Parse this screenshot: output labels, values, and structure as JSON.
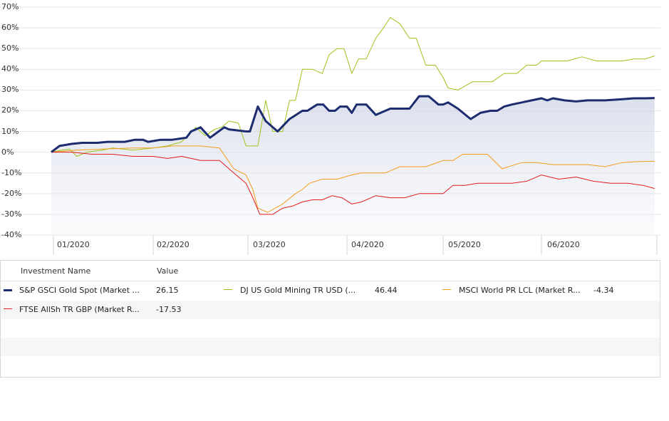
{
  "chart_data": {
    "type": "line",
    "ylim": [
      -40,
      70
    ],
    "y_ticks": [
      70,
      60,
      50,
      40,
      30,
      20,
      10,
      0,
      -10,
      -20,
      -30,
      -40
    ],
    "y_tick_labels": [
      "70%",
      "60%",
      "50%",
      "40%",
      "30%",
      "20%",
      "10%",
      "0%",
      "-10%",
      "-20%",
      "-30%",
      "-40%"
    ],
    "x_tick_labels": [
      "01/2020",
      "02/2020",
      "03/2020",
      "04/2020",
      "05/2020",
      "06/2020"
    ],
    "grid": true,
    "series": [
      {
        "name": "S&P GSCI Gold Spot (Market ...",
        "color": "#1c2c6e",
        "legend_value": "26.15",
        "x": [
          0.0,
          0.08,
          0.2,
          0.3,
          0.45,
          0.55,
          0.6,
          0.72,
          0.82,
          0.9,
          0.95,
          1.08,
          1.2,
          1.35,
          1.4,
          1.5,
          1.6,
          1.75,
          1.8,
          1.98,
          2.02,
          2.1,
          2.18,
          2.3,
          2.42,
          2.55,
          2.6,
          2.7,
          2.76,
          2.82,
          2.88,
          2.93,
          3.0,
          3.05,
          3.1,
          3.2,
          3.3,
          3.45,
          3.55,
          3.65,
          3.75,
          3.85,
          3.95,
          4.0,
          4.05,
          4.15,
          4.28,
          4.38,
          4.48,
          4.55,
          4.62,
          4.7,
          4.8,
          4.9,
          5.0,
          5.05,
          5.1,
          5.2,
          5.3,
          5.4,
          5.55,
          5.68,
          5.8,
          5.9,
          5.98
        ],
        "values": [
          0,
          3,
          4,
          4.5,
          4.5,
          5,
          5,
          5,
          6,
          6,
          5,
          6,
          6,
          7,
          10,
          12,
          7,
          12,
          11,
          10,
          10,
          22,
          15,
          10,
          16,
          20,
          20,
          23,
          23,
          20,
          20,
          22,
          22,
          19,
          23,
          23,
          18,
          21,
          21,
          21,
          27,
          27,
          23,
          23,
          24,
          21,
          16,
          19,
          20,
          20,
          22,
          23,
          24,
          25,
          26,
          25,
          26,
          25,
          24.5,
          25,
          25,
          25.5,
          26,
          26,
          26.15
        ]
      },
      {
        "name": "DJ US Gold Mining TR USD (...",
        "color": "#9dc21a",
        "legend_value": "46.44",
        "x": [
          0.0,
          0.1,
          0.18,
          0.25,
          0.35,
          0.5,
          0.6,
          0.8,
          1.0,
          1.15,
          1.3,
          1.45,
          1.55,
          1.65,
          1.72,
          1.8,
          1.9,
          1.98,
          2.1,
          2.18,
          2.25,
          2.35,
          2.42,
          2.48,
          2.55,
          2.65,
          2.75,
          2.82,
          2.9,
          2.97,
          3.05,
          3.12,
          3.2,
          3.3,
          3.38,
          3.45,
          3.55,
          3.65,
          3.72,
          3.82,
          3.92,
          4.0,
          4.05,
          4.15,
          4.3,
          4.4,
          4.5,
          4.62,
          4.75,
          4.85,
          4.95,
          5.0,
          5.05,
          5.12,
          5.22,
          5.35,
          5.48,
          5.55,
          5.7,
          5.8,
          5.9,
          5.98
        ],
        "values": [
          0,
          1,
          1.5,
          -2,
          0,
          1,
          2,
          1,
          2,
          3,
          5,
          12,
          8,
          11,
          12,
          15,
          14,
          3,
          3,
          25,
          10,
          10,
          25,
          25,
          40,
          40,
          38,
          47,
          50,
          50,
          38,
          45,
          45,
          55,
          60,
          65,
          62,
          55,
          55,
          42,
          42,
          36,
          31,
          30,
          34,
          34,
          34,
          38,
          38,
          42,
          42,
          44,
          44,
          44,
          44,
          46,
          44,
          44,
          44,
          45,
          45,
          46.44
        ]
      },
      {
        "name": "MSCI World PR LCL (Market R...",
        "color": "#f39c1a",
        "legend_value": "-4.34",
        "x": [
          0.0,
          0.25,
          0.5,
          0.8,
          1.0,
          1.2,
          1.5,
          1.7,
          1.85,
          1.98,
          2.05,
          2.1,
          2.2,
          2.35,
          2.48,
          2.55,
          2.62,
          2.75,
          2.9,
          3.05,
          3.15,
          3.28,
          3.4,
          3.55,
          3.7,
          3.82,
          4.0,
          4.1,
          4.2,
          4.3,
          4.45,
          4.6,
          4.8,
          4.95,
          5.1,
          5.25,
          5.4,
          5.55,
          5.7,
          5.85,
          5.98
        ],
        "values": [
          0,
          1,
          1.5,
          2,
          2,
          3,
          3,
          2,
          -8,
          -11,
          -18,
          -27,
          -29,
          -25,
          -20,
          -18,
          -15,
          -13,
          -13,
          -11,
          -10,
          -10,
          -10,
          -7,
          -7,
          -7,
          -4,
          -4,
          -1,
          -1,
          -1,
          -8,
          -5,
          -5,
          -6,
          -6,
          -6,
          -7,
          -5,
          -4.5,
          -4.34
        ]
      },
      {
        "name": "FTSE AllSh TR GBP (Market R...",
        "color": "#e31b1b",
        "legend_value": "-17.53",
        "x": [
          0.0,
          0.2,
          0.4,
          0.6,
          0.8,
          1.0,
          1.15,
          1.3,
          1.5,
          1.7,
          1.85,
          1.98,
          2.05,
          2.12,
          2.25,
          2.35,
          2.45,
          2.55,
          2.65,
          2.75,
          2.85,
          2.95,
          3.05,
          3.15,
          3.3,
          3.45,
          3.6,
          3.75,
          3.9,
          4.0,
          4.1,
          4.22,
          4.35,
          4.5,
          4.7,
          4.85,
          5.0,
          5.15,
          5.3,
          5.45,
          5.6,
          5.75,
          5.88,
          5.98
        ],
        "values": [
          0,
          0,
          -1,
          -1,
          -2,
          -2,
          -3,
          -2,
          -4,
          -4,
          -10,
          -15,
          -22,
          -30,
          -30,
          -27,
          -26,
          -24,
          -23,
          -23,
          -21,
          -22,
          -25,
          -24,
          -21,
          -22,
          -22,
          -20,
          -20,
          -20,
          -16,
          -16,
          -15,
          -15,
          -15,
          -14,
          -11,
          -13,
          -12,
          -14,
          -15,
          -15,
          -16,
          -17.53
        ]
      }
    ]
  },
  "legend": {
    "col_name_header": "Investment Name",
    "col_value_header": "Value"
  }
}
